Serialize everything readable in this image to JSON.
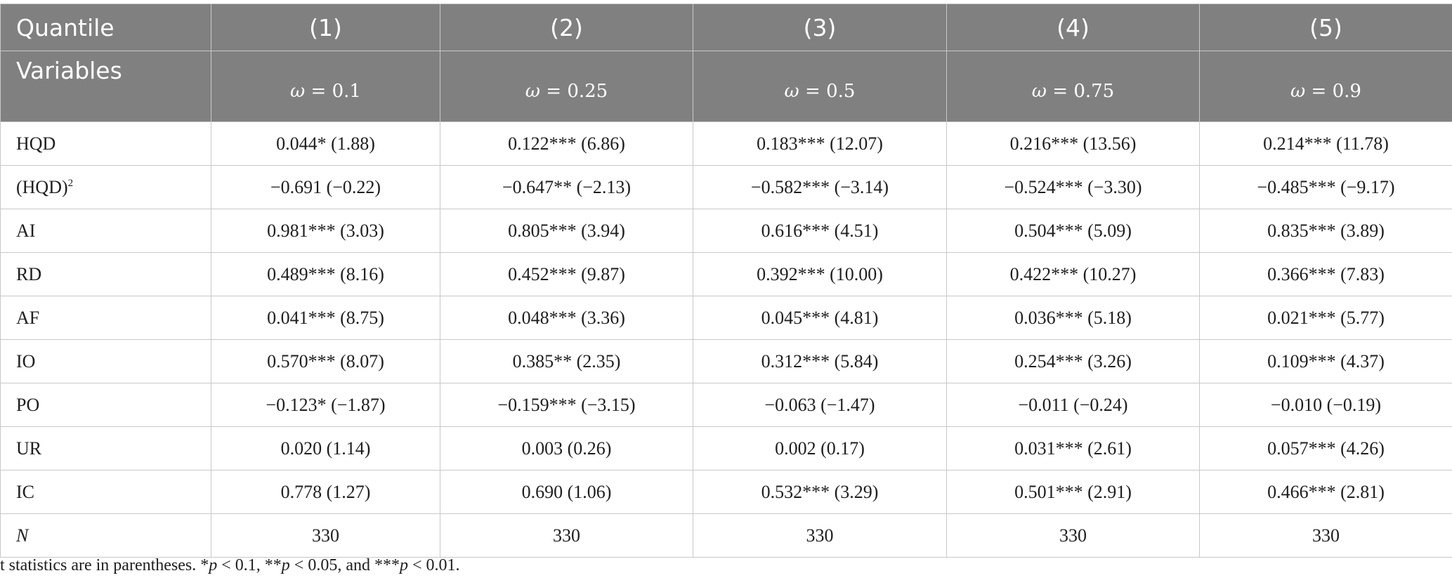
{
  "header": {
    "quantile_label": "Quantile",
    "variables_label": "Variables",
    "columns": [
      {
        "number": "(1)",
        "omega_symbol": "ω",
        "omega_eq": " = ",
        "omega_value": "0.1"
      },
      {
        "number": "(2)",
        "omega_symbol": "ω",
        "omega_eq": " = ",
        "omega_value": "0.25"
      },
      {
        "number": "(3)",
        "omega_symbol": "ω",
        "omega_eq": " = ",
        "omega_value": "0.5"
      },
      {
        "number": "(4)",
        "omega_symbol": "ω",
        "omega_eq": " = ",
        "omega_value": "0.75"
      },
      {
        "number": "(5)",
        "omega_symbol": "ω",
        "omega_eq": " = ",
        "omega_value": "0.9"
      }
    ]
  },
  "rows": [
    {
      "label": "HQD",
      "cells": [
        "0.044* (1.88)",
        "0.122*** (6.86)",
        "0.183*** (12.07)",
        "0.216*** (13.56)",
        "0.214*** (11.78)"
      ]
    },
    {
      "label": "(HQD)",
      "sup": "2",
      "cells": [
        "−0.691 (−0.22)",
        "−0.647** (−2.13)",
        "−0.582*** (−3.14)",
        "−0.524*** (−3.30)",
        "−0.485*** (−9.17)"
      ]
    },
    {
      "label": "AI",
      "cells": [
        "0.981*** (3.03)",
        "0.805*** (3.94)",
        "0.616*** (4.51)",
        "0.504*** (5.09)",
        "0.835*** (3.89)"
      ]
    },
    {
      "label": "RD",
      "cells": [
        "0.489*** (8.16)",
        "0.452*** (9.87)",
        "0.392*** (10.00)",
        "0.422*** (10.27)",
        "0.366*** (7.83)"
      ]
    },
    {
      "label": "AF",
      "cells": [
        "0.041*** (8.75)",
        "0.048*** (3.36)",
        "0.045*** (4.81)",
        "0.036*** (5.18)",
        "0.021*** (5.77)"
      ]
    },
    {
      "label": "IO",
      "cells": [
        "0.570*** (8.07)",
        "0.385** (2.35)",
        "0.312*** (5.84)",
        "0.254*** (3.26)",
        "0.109*** (4.37)"
      ]
    },
    {
      "label": "PO",
      "cells": [
        "−0.123* (−1.87)",
        "−0.159*** (−3.15)",
        "−0.063 (−1.47)",
        "−0.011 (−0.24)",
        "−0.010 (−0.19)"
      ]
    },
    {
      "label": "UR",
      "cells": [
        "0.020 (1.14)",
        "0.003 (0.26)",
        "0.002 (0.17)",
        "0.031*** (2.61)",
        "0.057*** (4.26)"
      ]
    },
    {
      "label": "IC",
      "cells": [
        "0.778 (1.27)",
        "0.690 (1.06)",
        "0.532*** (3.29)",
        "0.501*** (2.91)",
        "0.466*** (2.81)"
      ]
    },
    {
      "label": "N",
      "cells": [
        "330",
        "330",
        "330",
        "330",
        "330"
      ]
    }
  ],
  "note": {
    "t1": "t statistics are in parentheses. *",
    "t2": " < 0.1, **",
    "t3": " < 0.05, and ***",
    "t4": " < 0.01.",
    "p": "p"
  }
}
